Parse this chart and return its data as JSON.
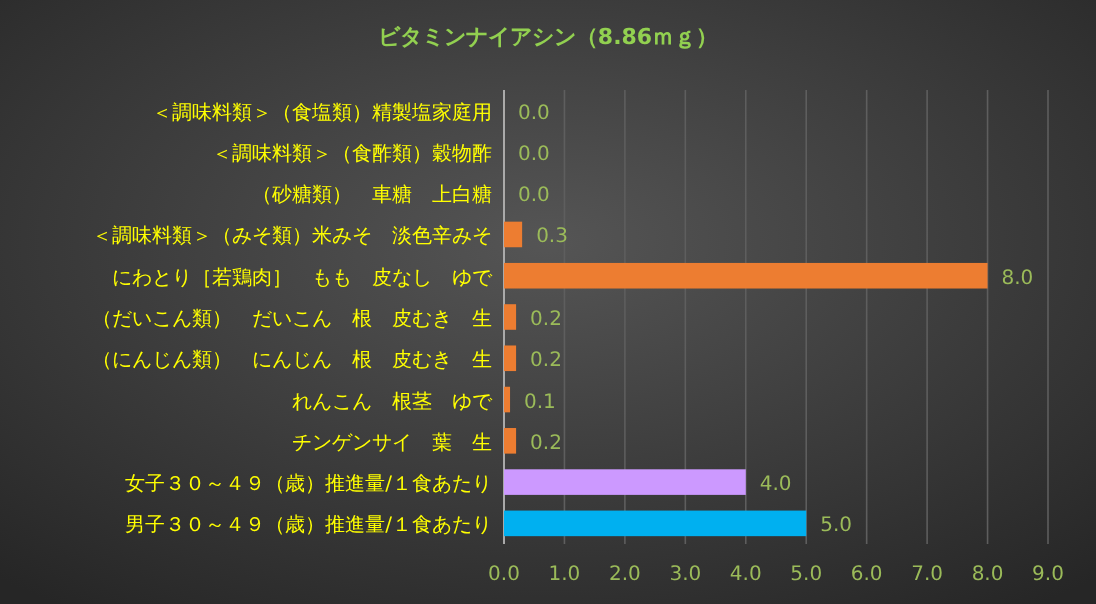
{
  "chart_data": {
    "type": "bar",
    "orientation": "horizontal",
    "title": "ビタミンナイアシン（8.86ｍｇ）",
    "categories": [
      "＜調味料類＞（食塩類）精製塩家庭用",
      "＜調味料類＞（食酢類）穀物酢",
      "（砂糖類）　車糖　上白糖",
      "＜調味料類＞（みそ類）米みそ　淡色辛みそ",
      "にわとり［若鶏肉］　もも　皮なし　ゆで",
      "（だいこん類）　だいこん　根　皮むき　生",
      "（にんじん類）　にんじん　根　皮むき　生",
      "れんこん　根茎　ゆで",
      "チンゲンサイ　葉　生",
      "女子３０～４９（歳）推進量/１食あたり",
      "男子３０～４９（歳）推進量/１食あたり"
    ],
    "values": [
      0,
      0,
      0,
      0.3,
      8.0,
      0.2,
      0.2,
      0.1,
      0.2,
      4.0,
      5.0
    ],
    "value_labels": [
      "0.0",
      "0.0",
      "0.0",
      "0.3",
      "8.0",
      "0.2",
      "0.2",
      "0.1",
      "0.2",
      "4.0",
      "5.0"
    ],
    "colors": [
      "#ed7d31",
      "#ed7d31",
      "#ed7d31",
      "#ed7d31",
      "#ed7d31",
      "#ed7d31",
      "#ed7d31",
      "#ed7d31",
      "#ed7d31",
      "#cc99ff",
      "#00b0f0"
    ],
    "xlim": [
      0,
      9
    ],
    "xticks": [
      {
        "value": 0,
        "label": "0.0"
      },
      {
        "value": 1,
        "label": "1.0"
      },
      {
        "value": 2,
        "label": "2.0"
      },
      {
        "value": 3,
        "label": "3.0"
      },
      {
        "value": 4,
        "label": "4.0"
      },
      {
        "value": 5,
        "label": "5.0"
      },
      {
        "value": 6,
        "label": "6.0"
      },
      {
        "value": 7,
        "label": "7.0"
      },
      {
        "value": 8,
        "label": "8.0"
      },
      {
        "value": 9,
        "label": "9.0"
      }
    ],
    "grid": "x"
  }
}
